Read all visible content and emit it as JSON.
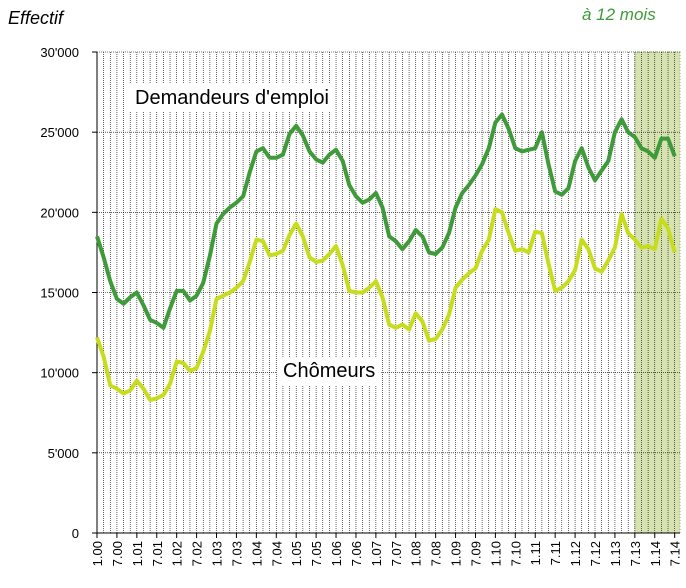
{
  "chart_data": {
    "type": "line",
    "y_label": "Effectif",
    "annotation": "à 12 mois",
    "highlight_from": "7.13",
    "highlight_color": "#d6e2b0",
    "grid": true,
    "categories": [
      "1.00",
      null,
      null,
      "7.00",
      null,
      null,
      "1.01",
      null,
      null,
      "7.01",
      null,
      null,
      "1.02",
      null,
      null,
      "7.02",
      null,
      null,
      "1.03",
      null,
      null,
      "7.03",
      null,
      null,
      "1.04",
      null,
      null,
      "7.04",
      null,
      null,
      "1.05",
      null,
      null,
      "7.05",
      null,
      null,
      "1.06",
      null,
      null,
      "7.06",
      null,
      null,
      "1.07",
      null,
      null,
      "7.07",
      null,
      null,
      "1.08",
      null,
      null,
      "7.08",
      null,
      null,
      "1.09",
      null,
      null,
      "7.09",
      null,
      null,
      "1.10",
      null,
      null,
      "7.10",
      null,
      null,
      "1.11",
      null,
      null,
      "7.11",
      null,
      null,
      "1.12",
      null,
      null,
      "7.12",
      null,
      null,
      "1.13",
      null,
      null,
      "7.13",
      null,
      null,
      "1.14",
      null,
      null,
      "7.14"
    ],
    "ylim": [
      0,
      30000
    ],
    "yticks": [
      {
        "value": 0,
        "label": "0"
      },
      {
        "value": 5000,
        "label": "5'000"
      },
      {
        "value": 10000,
        "label": "10'000"
      },
      {
        "value": 15000,
        "label": "15'000"
      },
      {
        "value": 20000,
        "label": "20'000"
      },
      {
        "value": 25000,
        "label": "25'000"
      },
      {
        "value": 30000,
        "label": "30'000"
      }
    ],
    "series": [
      {
        "name": "Demandeurs d'emploi",
        "color": "#3f9a3a",
        "values": [
          18500,
          17200,
          15700,
          14600,
          14300,
          14700,
          15000,
          14200,
          13300,
          13100,
          12800,
          14000,
          15100,
          15100,
          14500,
          14800,
          15600,
          17300,
          19300,
          19900,
          20300,
          20600,
          21000,
          22500,
          23800,
          24000,
          23400,
          23400,
          23600,
          24900,
          25400,
          24800,
          23800,
          23300,
          23100,
          23600,
          23900,
          23200,
          21700,
          21000,
          20600,
          20800,
          21200,
          20300,
          18500,
          18200,
          17700,
          18200,
          18900,
          18500,
          17500,
          17400,
          17800,
          18700,
          20300,
          21200,
          21700,
          22300,
          23000,
          24000,
          25600,
          26100,
          25200,
          24000,
          23800,
          23900,
          24000,
          25000,
          23000,
          21300,
          21100,
          21500,
          23200,
          24000,
          22800,
          22000,
          22600,
          23200,
          25000,
          25800,
          25000,
          24700,
          24000,
          23800,
          23400,
          24600,
          24600,
          23500
        ]
      },
      {
        "name": "Chômeurs",
        "color": "#c8dc1e",
        "values": [
          12200,
          11000,
          9200,
          9000,
          8700,
          8900,
          9500,
          9000,
          8300,
          8400,
          8600,
          9300,
          10700,
          10600,
          10100,
          10300,
          11300,
          12600,
          14600,
          14800,
          15000,
          15300,
          15700,
          16900,
          18300,
          18200,
          17300,
          17400,
          17600,
          18600,
          19300,
          18500,
          17200,
          16900,
          17000,
          17400,
          17900,
          16700,
          15100,
          15000,
          15000,
          15300,
          15700,
          14700,
          13000,
          12800,
          13000,
          12700,
          13700,
          13200,
          12000,
          12100,
          12700,
          13600,
          15300,
          15800,
          16200,
          16500,
          17600,
          18300,
          20200,
          20000,
          18700,
          17600,
          17700,
          17500,
          18800,
          18700,
          16800,
          15100,
          15300,
          15700,
          16400,
          18300,
          17700,
          16500,
          16300,
          17000,
          17800,
          19900,
          18700,
          18300,
          17800,
          17900,
          17700,
          19600,
          19000,
          17500
        ]
      }
    ]
  }
}
